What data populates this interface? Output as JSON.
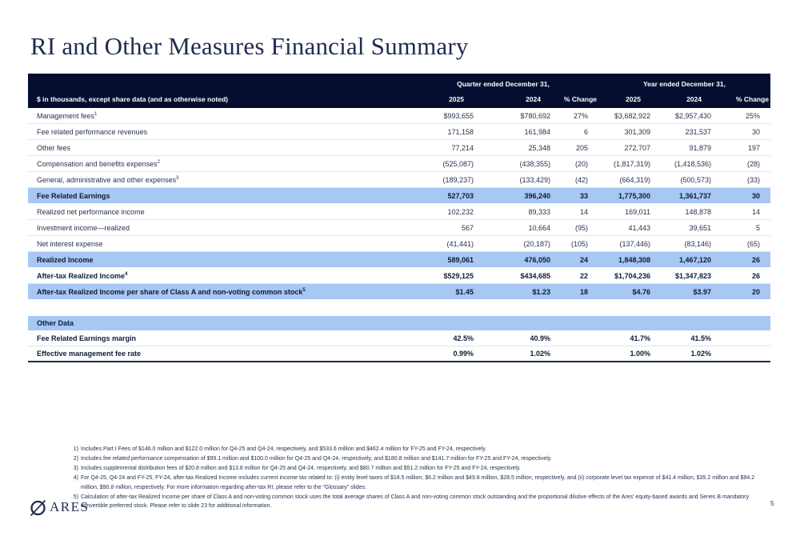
{
  "page": {
    "title": "RI and Other Measures Financial Summary",
    "page_number": "5",
    "logo_text": "ARES"
  },
  "colors": {
    "header_bg": "#050e30",
    "row_highlight": "#a6c8f2",
    "navy_text": "#1f2c50"
  },
  "table": {
    "unit_label": "$ in thousands, except share data (and as otherwise noted)",
    "group_headers": [
      {
        "label": "Quarter ended December 31,"
      },
      {
        "label": "Year ended December 31,"
      }
    ],
    "col_headers": [
      "2025",
      "2024",
      "% Change",
      "2025",
      "2024",
      "% Change"
    ],
    "rows": [
      {
        "label": "Management fees",
        "sup": "1",
        "style": "normal",
        "values": [
          "$993,655",
          "$780,692",
          "27%",
          "$3,682,922",
          "$2,957,430",
          "25%"
        ]
      },
      {
        "label": "Fee related performance revenues",
        "sup": "",
        "style": "normal",
        "values": [
          "171,158",
          "161,984",
          "6",
          "301,309",
          "231,537",
          "30"
        ]
      },
      {
        "label": "Other fees",
        "sup": "",
        "style": "normal",
        "values": [
          "77,214",
          "25,348",
          "205",
          "272,707",
          "91,879",
          "197"
        ]
      },
      {
        "label": "Compensation and benefits expenses",
        "sup": "2",
        "style": "normal",
        "values": [
          "(525,087)",
          "(438,355)",
          "(20)",
          "(1,817,319)",
          "(1,418,536)",
          "(28)"
        ]
      },
      {
        "label": "General, administrative and other expenses",
        "sup": "3",
        "style": "normal",
        "values": [
          "(189,237)",
          "(133,429)",
          "(42)",
          "(664,319)",
          "(500,573)",
          "(33)"
        ]
      },
      {
        "label": "Fee Related Earnings",
        "sup": "",
        "style": "highlight",
        "values": [
          "527,703",
          "396,240",
          "33",
          "1,775,300",
          "1,361,737",
          "30"
        ]
      },
      {
        "label": "Realized net performance income",
        "sup": "",
        "style": "normal",
        "values": [
          "102,232",
          "89,333",
          "14",
          "169,011",
          "148,878",
          "14"
        ]
      },
      {
        "label": "Investment income—realized",
        "sup": "",
        "style": "normal",
        "values": [
          "567",
          "10,664",
          "(95)",
          "41,443",
          "39,651",
          "5"
        ]
      },
      {
        "label": "Net interest expense",
        "sup": "",
        "style": "normal",
        "values": [
          "(41,441)",
          "(20,187)",
          "(105)",
          "(137,446)",
          "(83,146)",
          "(65)"
        ]
      },
      {
        "label": "Realized Income",
        "sup": "",
        "style": "highlight",
        "values": [
          "589,061",
          "476,050",
          "24",
          "1,848,308",
          "1,467,120",
          "26"
        ]
      },
      {
        "label": "After-tax Realized Income",
        "sup": "4",
        "style": "bold",
        "values": [
          "$529,125",
          "$434,685",
          "22",
          "$1,704,236",
          "$1,347,823",
          "26"
        ]
      },
      {
        "label": "After-tax Realized Income per share of Class A and non-voting common stock",
        "sup": "5",
        "style": "highlight",
        "values": [
          "$1.45",
          "$1.23",
          "18",
          "$4.76",
          "$3.97",
          "20"
        ]
      }
    ],
    "other_data": {
      "header": "Other Data",
      "rows": [
        {
          "label": "Fee Related Earnings margin",
          "values": [
            "42.5%",
            "40.9%",
            "",
            "41.7%",
            "41.5%",
            ""
          ]
        },
        {
          "label": "Effective management fee rate",
          "values": [
            "0.99%",
            "1.02%",
            "",
            "1.00%",
            "1.02%",
            ""
          ]
        }
      ]
    }
  },
  "footnotes": [
    {
      "num": "1)",
      "text": "Includes Part I Fees of $146.0 million and $122.0 million for Q4-25 and Q4-24, respectively, and $533.6 million and $462.4 million for FY-25 and FY-24, respectively."
    },
    {
      "num": "2)",
      "text": "Includes fee related performance compensation of $99.1 million and $100.0 million for Q4-25 and Q4-24, respectively, and $180.8 million and $141.7 million for FY-25 and FY-24, respectively."
    },
    {
      "num": "3)",
      "text": "Includes supplemental distribution fees of $20.8 million and $13.6 million for Q4-25 and Q4-24, respectively, and $80.7 million and $51.2 million for FY-25 and FY-24, respectively."
    },
    {
      "num": "4)",
      "text": "For Q4-25, Q4-24 and FY-25, FY-24, after-tax Realized Income includes current income tax related to: (i) entity level taxes of $18.5 million, $6.2 million and $49.8 million, $28.5 million, respectively, and (ii) corporate level tax expense of $41.4 million, $35.2 million and $94.2 million, $90.8 million, respectively. For more information regarding after-tax RI, please refer to the \"Glossary\" slides."
    },
    {
      "num": "5)",
      "text": "Calculation of after-tax Realized Income per share of Class A and non-voting common stock uses the total average shares of Class A and non-voting common stock outstanding and the proportional dilutive effects of the Ares' equity-based awards and Series B mandatory convertible preferred stock. Please refer to slide 23 for additional information."
    }
  ]
}
